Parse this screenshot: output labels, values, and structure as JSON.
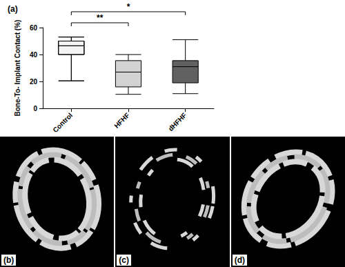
{
  "chart_data": {
    "type": "boxplot",
    "title": "(a)",
    "y_label": "Bone-To- Implant Contact (%)",
    "categories": [
      "Control",
      "HFHF",
      "dHFHF"
    ],
    "boxes": [
      {
        "min": 20.5,
        "q1": 40,
        "median": 46.5,
        "q3": 50,
        "max": 53
      },
      {
        "min": 10.5,
        "q1": 16,
        "median": 27,
        "q3": 35.5,
        "max": 40
      },
      {
        "min": 11,
        "q1": 19,
        "median": 31,
        "q3": 35.5,
        "max": 51
      }
    ],
    "colors": [
      "#f4f4f4",
      "#d3d3d3",
      "#616161"
    ],
    "ylim": [
      0,
      60
    ],
    "yticks": [
      0,
      20,
      40,
      60
    ],
    "grid": false,
    "annotations": [
      {
        "text": "**",
        "from": "Control",
        "to": "HFHF"
      },
      {
        "text": "*",
        "from": "Control",
        "to": "dHFHF"
      }
    ]
  },
  "panels": [
    {
      "label": "(b)"
    },
    {
      "label": "(c)"
    },
    {
      "label": "(d)"
    }
  ]
}
